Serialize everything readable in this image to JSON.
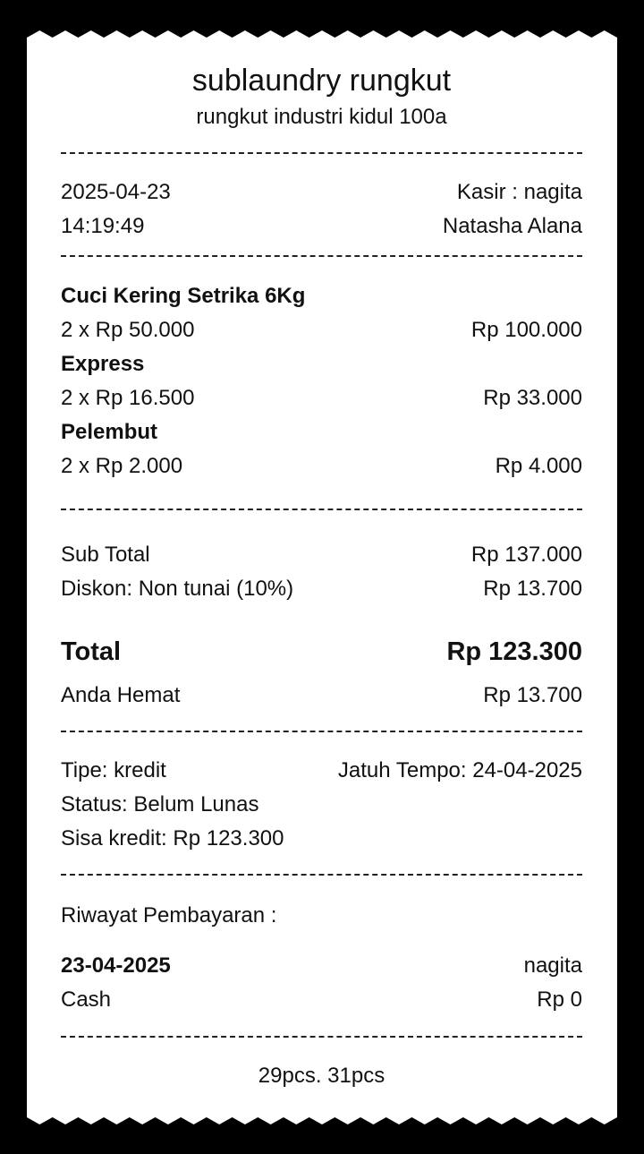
{
  "header": {
    "store_name": "sublaundry rungkut",
    "address": "rungkut industri kidul 100a"
  },
  "info": {
    "date": "2025-04-23",
    "time": "14:19:49",
    "cashier": "Kasir : nagita",
    "customer": "Natasha Alana"
  },
  "items": [
    {
      "name": "Cuci Kering Setrika 6Kg",
      "qty_price": "2 x Rp 50.000",
      "amount": "Rp 100.000"
    },
    {
      "name": "Express",
      "qty_price": "2 x Rp 16.500",
      "amount": "Rp 33.000"
    },
    {
      "name": "Pelembut",
      "qty_price": "2 x Rp 2.000",
      "amount": "Rp 4.000"
    }
  ],
  "summary": {
    "subtotal_label": "Sub Total",
    "subtotal": "Rp 137.000",
    "discount_label": "Diskon: Non tunai (10%)",
    "discount": "Rp 13.700",
    "total_label": "Total",
    "total": "Rp 123.300",
    "saved_label": "Anda Hemat",
    "saved": "Rp 13.700"
  },
  "payment": {
    "type": "Tipe: kredit",
    "due": "Jatuh Tempo: 24-04-2025",
    "status": "Status: Belum Lunas",
    "remaining": "Sisa kredit: Rp 123.300"
  },
  "history": {
    "title": "Riwayat Pembayaran :",
    "entries": [
      {
        "date": "23-04-2025",
        "user": "nagita",
        "method": "Cash",
        "amount": "Rp 0"
      }
    ]
  },
  "footer": {
    "note": "29pcs. 31pcs"
  }
}
